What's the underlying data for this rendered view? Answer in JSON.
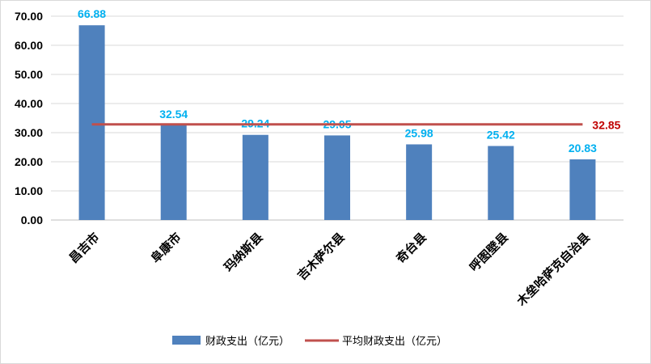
{
  "chart_data": {
    "type": "bar",
    "categories": [
      "昌吉市",
      "阜康市",
      "玛纳斯县",
      "吉木萨尔县",
      "奇台县",
      "呼图壁县",
      "木垒哈萨克自治县"
    ],
    "series": [
      {
        "name": "财政支出（亿元）",
        "type": "bar",
        "color": "#4f81bd",
        "values": [
          66.88,
          32.54,
          29.24,
          29.05,
          25.98,
          25.42,
          20.83
        ],
        "labels": [
          "66.88",
          "32.54",
          "29.24",
          "29.05",
          "25.98",
          "25.42",
          "20.83"
        ]
      },
      {
        "name": "平均财政支出（亿元）",
        "type": "line",
        "color": "#c0504d",
        "value": 32.85,
        "label": "32.85"
      }
    ],
    "ylim": [
      0,
      70
    ],
    "yticks": [
      "0.00",
      "10.00",
      "20.00",
      "30.00",
      "40.00",
      "50.00",
      "60.00",
      "70.00"
    ],
    "grid": true,
    "legend": "bottom",
    "data_label_color": "#00b0f0",
    "average_label_color": "#c00000"
  }
}
